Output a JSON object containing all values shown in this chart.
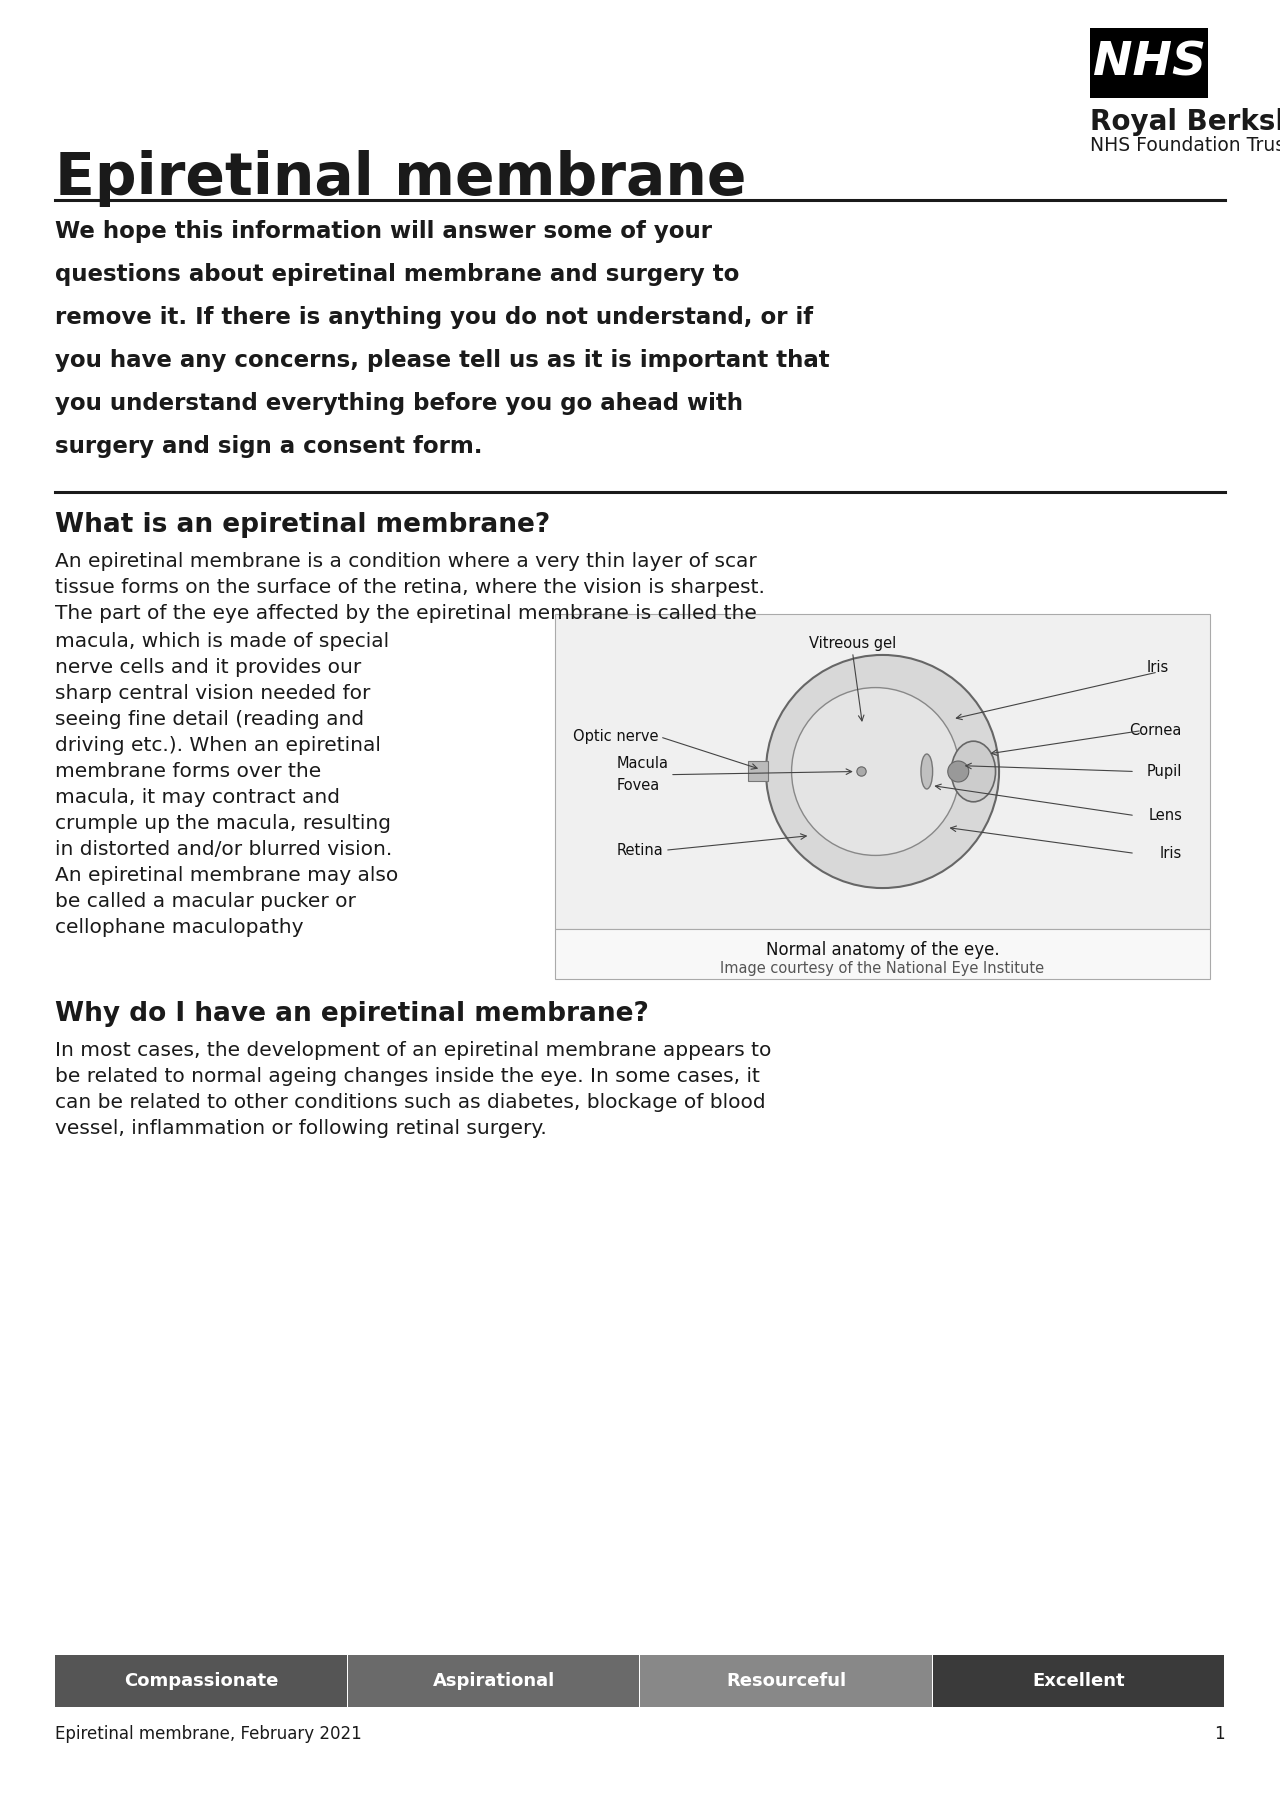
{
  "title": "Epiretinal membrane",
  "nhs_logo_text": "NHS",
  "trust_name": "Royal Berkshire",
  "trust_subtitle": "NHS Foundation Trust",
  "section1_heading": "What is an epiretinal membrane?",
  "section2_heading": "Why do I have an epiretinal membrane?",
  "image_caption1": "Normal anatomy of the eye.",
  "image_caption2": "Image courtesy of the National Eye Institute",
  "footer_values": [
    "Compassionate",
    "Aspirational",
    "Resourceful",
    "Excellent"
  ],
  "footer_text": "Epiretinal membrane, February 2021",
  "footer_page": "1",
  "intro_lines": [
    "We hope this information will answer some of your",
    "questions about epiretinal membrane and surgery to",
    "remove it. If there is anything you do not understand, or if",
    "you have any concerns, please tell us as it is important that",
    "you understand everything before you go ahead with",
    "surgery and sign a consent form."
  ],
  "body1_lines": [
    "An epiretinal membrane is a condition where a very thin layer of scar",
    "tissue forms on the surface of the retina, where the vision is sharpest.",
    "The part of the eye affected by the epiretinal membrane is called the"
  ],
  "left_col_lines": [
    "macula, which is made of special",
    "nerve cells and it provides our",
    "sharp central vision needed for",
    "seeing fine detail (reading and",
    "driving etc.). When an epiretinal",
    "membrane forms over the",
    "macula, it may contract and",
    "crumple up the macula, resulting",
    "in distorted and/or blurred vision.",
    "An epiretinal membrane may also",
    "be called a macular pucker or",
    "cellophane maculopathy"
  ],
  "s2_lines": [
    "In most cases, the development of an epiretinal membrane appears to",
    "be related to normal ageing changes inside the eye. In some cases, it",
    "can be related to other conditions such as diabetes, blockage of blood",
    "vessel, inflammation or following retinal surgery."
  ],
  "bar_colors": [
    "#555555",
    "#6a6a6a",
    "#888888",
    "#3a3a3a"
  ],
  "bg_color": "#ffffff",
  "text_color": "#1a1a1a",
  "hr_color": "#1a1a1a"
}
